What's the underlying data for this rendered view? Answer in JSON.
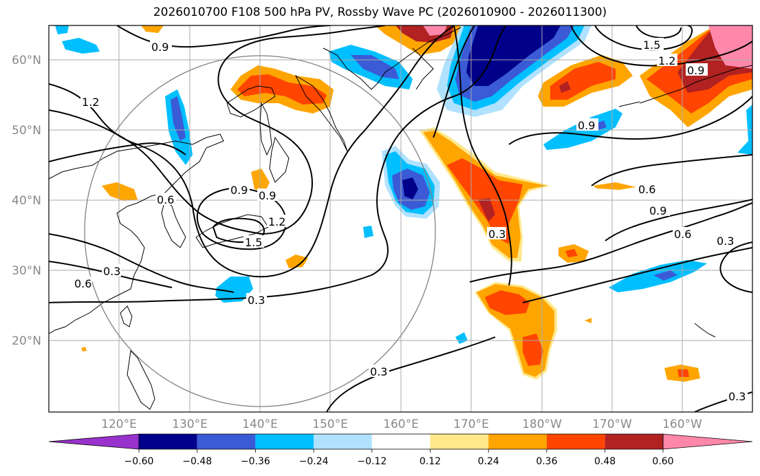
{
  "title": "2026010700 F108 500 hPa PV, Rossby Wave PC (2026010900 - 2026011300)",
  "latitude_labels": [
    "60°N",
    "50°N",
    "40°N",
    "30°N",
    "20°N"
  ],
  "longitude_labels": [
    "120°E",
    "130°E",
    "140°E",
    "150°E",
    "160°E",
    "170°E",
    "180°W",
    "170°W",
    "160°W"
  ],
  "contour_labels": [
    "0.9",
    "1.5",
    "1.2",
    "0.9",
    "1.2",
    "0.9",
    "0.6",
    "0.9",
    "0.9",
    "0.6",
    "1.2",
    "1.5",
    "0.9",
    "0.6",
    "0.3",
    "0.3",
    "0.3",
    "0.3",
    "0.6",
    "0.3",
    "0.3"
  ],
  "colorbar": {
    "tick_labels": [
      "−0.60",
      "−0.48",
      "−0.36",
      "−0.24",
      "−0.12",
      "0.12",
      "0.24",
      "0.36",
      "0.48",
      "0.60"
    ],
    "colors": [
      "#9932cc",
      "#00008b",
      "#3b5bd6",
      "#00bfff",
      "#b0e2ff",
      "#ffffff",
      "#ffe88a",
      "#ffa500",
      "#ff4500",
      "#b22222",
      "#ff88aa"
    ]
  },
  "colors": {
    "purple": "#9932cc",
    "navy": "#00008b",
    "blue": "#3b5bd6",
    "cyan": "#00bfff",
    "lightblue": "#b0e2ff",
    "lightyellow": "#ffe88a",
    "orange": "#ffa500",
    "orangered": "#ff4500",
    "darkred": "#b22222",
    "pink": "#ff88aa",
    "grid": "#aaaaaa",
    "axis_label": "#888888"
  }
}
